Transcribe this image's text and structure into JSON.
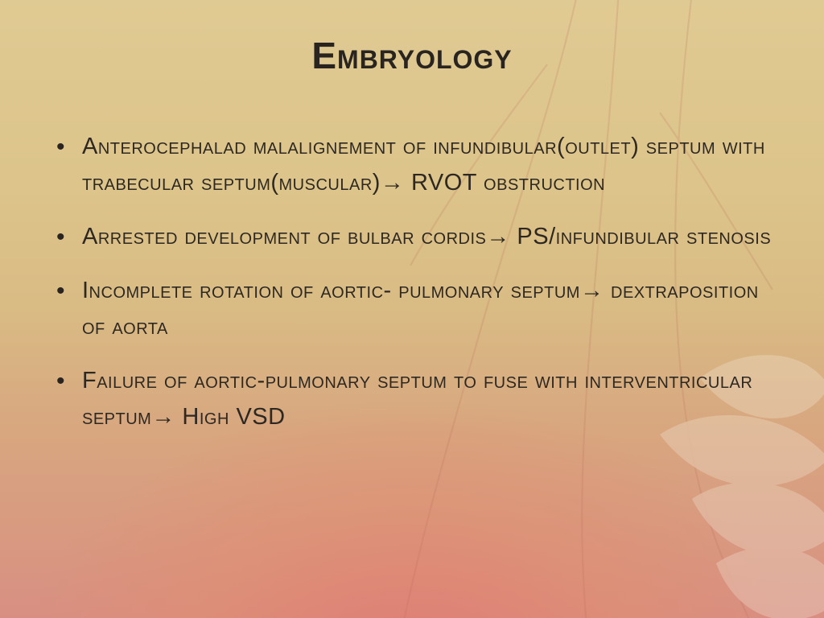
{
  "slide": {
    "title": "Embryology",
    "title_fontsize": 46,
    "title_color": "#2a2420",
    "body_fontsize": 29,
    "body_color": "#2e2822",
    "font_family": "Trebuchet MS",
    "font_variant": "small-caps",
    "background_gradient_top": "#e0ca93",
    "background_gradient_bottom": "#d88f82",
    "accent_overlay_color": "rgba(225,120,115,0.85)",
    "decorative_stroke_color": "#b86a5a",
    "decorative_leaf_color": "#f2ebdc",
    "arrow_glyph": "→",
    "bullets": [
      "Anterocephalad malalignement of infundibular(outlet) septum with trabecular septum(muscular)→ RVOT obstruction",
      "Arrested development of bulbar cordis→ PS/infundibular stenosis",
      "Incomplete rotation of aortic- pulmonary septum→ dextraposition of aorta",
      "Failure of aortic-pulmonary septum to fuse with interventricular septum→ High VSD"
    ]
  }
}
